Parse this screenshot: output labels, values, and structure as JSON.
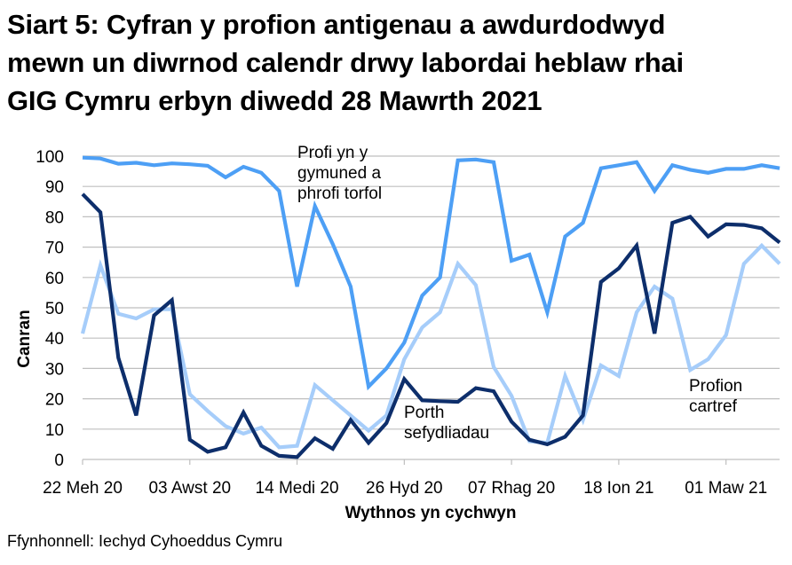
{
  "title_lines": [
    "Siart 5: Cyfran y profion antigenau a awdurdodwyd",
    "mewn un diwrnod calendr drwy labordai heblaw rhai",
    "GIG Cymru erbyn diwedd 28 Mawrth 2021"
  ],
  "source": "Ffynhonnell: Iechyd Cyhoeddus Cymru",
  "colors": {
    "community": "#4d9ff5",
    "institutional": "#0d2e6b",
    "home": "#a6cdfa",
    "grid": "#bfbfbf"
  },
  "chart_data": {
    "type": "line",
    "title": "Siart 5: Cyfran y profion antigenau a awdurdodwyd mewn un diwrnod calendr drwy labordai heblaw rhai GIG Cymru erbyn diwedd 28 Mawrth 2021",
    "xlabel": "Wythnos yn cychwyn",
    "ylabel": "Canran",
    "ylim": [
      0,
      100
    ],
    "yticks": [
      0,
      10,
      20,
      30,
      40,
      50,
      60,
      70,
      80,
      90,
      100
    ],
    "grid": true,
    "legend": "inline annotations",
    "x_tick_labels": [
      "22 Meh 20",
      "03 Awst 20",
      "14 Medi 20",
      "26 Hyd 20",
      "07 Rhag 20",
      "18 Ion 21",
      "01 Maw 21"
    ],
    "x_tick_indices": [
      0,
      6,
      12,
      18,
      24,
      30,
      36
    ],
    "x_count": 40,
    "series": [
      {
        "name": "Profi yn y gymuned a phrofi torfol",
        "color_key": "community",
        "values": [
          99.5,
          99.2,
          97.5,
          97.8,
          97.0,
          97.6,
          97.3,
          96.8,
          93.0,
          96.5,
          94.5,
          88.5,
          57.0,
          83.5,
          71.0,
          57.0,
          24.0,
          30.0,
          38.5,
          54.0,
          60.0,
          98.6,
          98.9,
          98.0,
          65.5,
          67.5,
          48.5,
          73.5,
          78.0,
          96.0,
          97.0,
          98.0,
          88.5,
          97.0,
          95.5,
          94.5,
          95.8,
          95.8,
          97.0,
          96.0
        ]
      },
      {
        "name": "Porth sefydliadau",
        "color_key": "institutional",
        "values": [
          87.5,
          81.5,
          33.5,
          14.5,
          47.5,
          52.5,
          6.5,
          2.5,
          4.0,
          15.5,
          4.5,
          1.2,
          0.8,
          7.0,
          3.5,
          13.0,
          5.5,
          12.0,
          26.5,
          19.5,
          19.2,
          19.0,
          23.5,
          22.5,
          12.5,
          6.5,
          5.0,
          7.5,
          14.5,
          58.5,
          63.0,
          70.5,
          41.5,
          78.0,
          80.0,
          73.5,
          77.5,
          77.3,
          76.2,
          71.5
        ]
      },
      {
        "name": "Profion cartref",
        "color_key": "home",
        "values": [
          41.5,
          64.0,
          48.0,
          46.5,
          49.5,
          49.5,
          21.5,
          16.0,
          11.0,
          8.5,
          10.5,
          4.0,
          4.5,
          24.5,
          19.5,
          14.5,
          9.5,
          14.5,
          33.0,
          43.5,
          48.5,
          64.5,
          57.5,
          30.5,
          21.0,
          6.0,
          5.5,
          27.5,
          13.0,
          31.0,
          27.5,
          48.5,
          57.0,
          53.0,
          29.5,
          33.0,
          41.0,
          64.5,
          70.5,
          64.5
        ]
      }
    ],
    "annotations": [
      {
        "series": "Profi yn y gymuned a phrofi torfol",
        "lines": [
          "Profi yn y",
          "gymuned a",
          "phrofi torfol"
        ]
      },
      {
        "series": "Porth sefydliadau",
        "lines": [
          "Porth",
          "sefydliadau"
        ]
      },
      {
        "series": "Profion cartref",
        "lines": [
          "Profion",
          "cartref"
        ]
      }
    ]
  }
}
